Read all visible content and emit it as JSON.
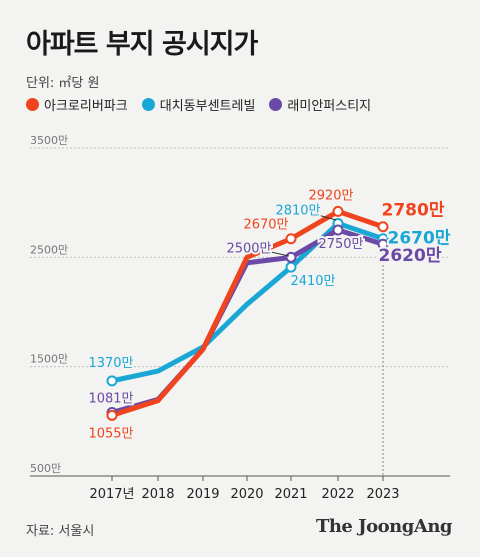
{
  "title": "아파트 부지 공시지가",
  "unit_label": "단위: ㎡당 원",
  "source": "자료: 서울시",
  "brand": "The JoongAng",
  "colors": {
    "orange": "#f0441e",
    "cyan": "#1aa7d6",
    "purple": "#6a4aa6",
    "grid": "#bdbdbd",
    "axis": "#555555",
    "background": "#f3f3f1"
  },
  "chart_data": {
    "type": "line",
    "title": "아파트 부지 공시지가",
    "x": [
      "2017년",
      "2018",
      "2019",
      "2020",
      "2021",
      "2022",
      "2023"
    ],
    "ylim": [
      500,
      3500
    ],
    "yticks": [
      "500만",
      "1500만",
      "2500만",
      "3500만"
    ],
    "ytick_values": [
      500,
      1500,
      2500,
      3500
    ],
    "legend_position": "top",
    "series": [
      {
        "name": "아크로리버파크",
        "color": "#f0441e",
        "values": [
          1055,
          1190,
          1660,
          2500,
          2670,
          2920,
          2780
        ],
        "labels": [
          "1055만",
          "",
          "",
          "",
          "2670만",
          "2920만",
          "2780만"
        ]
      },
      {
        "name": "대치동부센트레빌",
        "color": "#1aa7d6",
        "values": [
          1370,
          1460,
          1680,
          2070,
          2410,
          2810,
          2670
        ],
        "labels": [
          "1370만",
          "",
          "",
          "",
          "2410만",
          "2810만",
          "2670만"
        ]
      },
      {
        "name": "래미안퍼스티지",
        "color": "#6a4aa6",
        "values": [
          1081,
          1200,
          1660,
          2450,
          2500,
          2750,
          2620
        ],
        "labels": [
          "1081만",
          "",
          "",
          "",
          "2500만",
          "2750만",
          "2620만"
        ]
      }
    ]
  }
}
